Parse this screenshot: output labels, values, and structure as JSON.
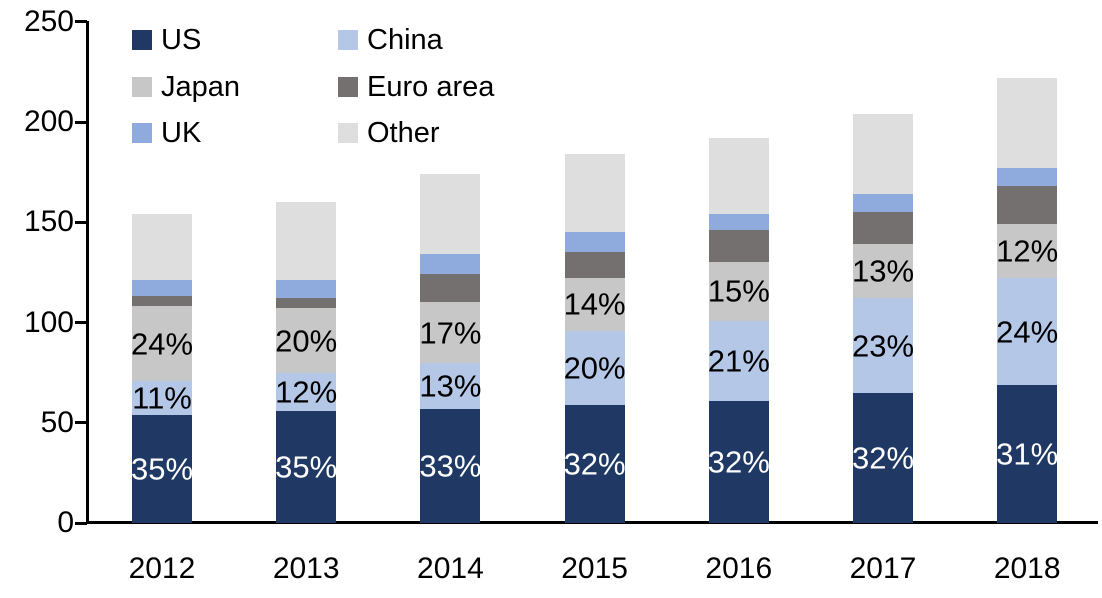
{
  "chart_data": {
    "type": "bar",
    "variant": "stacked-vertical",
    "title": "",
    "xlabel": "",
    "ylabel": "",
    "categories": [
      "2012",
      "2013",
      "2014",
      "2015",
      "2016",
      "2017",
      "2018"
    ],
    "series": [
      {
        "name": "US",
        "color": "#1F3864",
        "values": [
          54,
          56,
          57,
          59,
          61,
          65,
          69
        ],
        "labels": [
          "35%",
          "35%",
          "33%",
          "32%",
          "32%",
          "32%",
          "31%"
        ],
        "label_color": "#FFFFFF"
      },
      {
        "name": "China",
        "color": "#B4C7E7",
        "values": [
          17,
          19,
          23,
          37,
          40,
          47,
          53
        ],
        "labels": [
          "11%",
          "12%",
          "13%",
          "20%",
          "21%",
          "23%",
          "24%"
        ],
        "label_color": "#000000"
      },
      {
        "name": "Japan",
        "color": "#C7C7C7",
        "values": [
          37,
          32,
          30,
          26,
          29,
          27,
          27
        ],
        "labels": [
          "24%",
          "20%",
          "17%",
          "14%",
          "15%",
          "13%",
          "12%"
        ],
        "label_color": "#000000"
      },
      {
        "name": "Euro area",
        "color": "#757070",
        "values": [
          5,
          5,
          14,
          13,
          16,
          16,
          19
        ],
        "labels": null,
        "label_color": null
      },
      {
        "name": "UK",
        "color": "#8FAADC",
        "values": [
          8,
          9,
          10,
          10,
          8,
          9,
          9
        ],
        "labels": null,
        "label_color": null
      },
      {
        "name": "Other",
        "color": "#DEDEDE",
        "values": [
          33,
          39,
          40,
          39,
          38,
          40,
          45
        ],
        "labels": null,
        "label_color": null
      }
    ],
    "totals": [
      154,
      160,
      174,
      184,
      192,
      204,
      222
    ],
    "ylim": [
      0,
      250
    ],
    "yticks": [
      0,
      50,
      100,
      150,
      200,
      250
    ],
    "ytick_labels": [
      "0",
      "50",
      "100",
      "150",
      "200",
      "250"
    ],
    "grid": false,
    "legend_position": "top-left",
    "legend_order": [
      "US",
      "China",
      "Japan",
      "Euro area",
      "UK",
      "Other"
    ],
    "axis_color": "#000000",
    "background_color": "#FFFFFF"
  }
}
